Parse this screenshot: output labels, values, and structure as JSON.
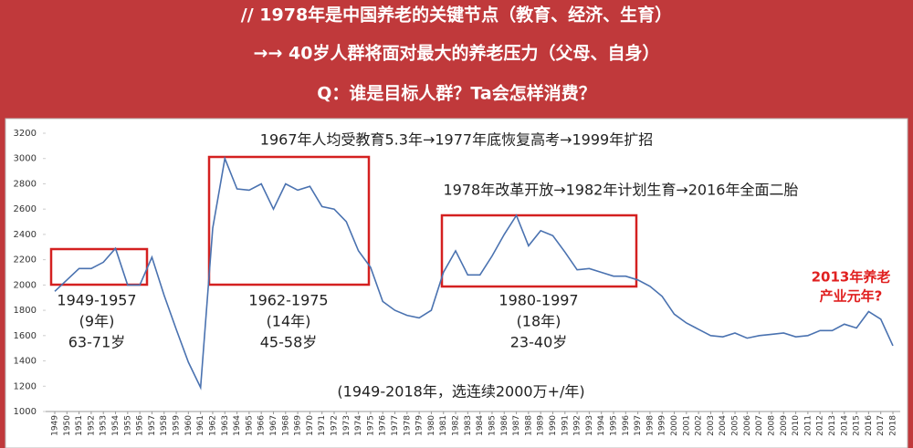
{
  "header": {
    "lines": [
      "//  1978年是中国养老的关键节点（教育、经济、生育）",
      "→→ 40岁人群将面对最大的养老压力（父母、自身）",
      "Q：谁是目标人群？Ta会怎样消费？"
    ]
  },
  "chart_data": {
    "type": "line",
    "x": [
      1949,
      1950,
      1951,
      1952,
      1953,
      1954,
      1955,
      1956,
      1957,
      1958,
      1959,
      1960,
      1961,
      1962,
      1963,
      1964,
      1965,
      1966,
      1967,
      1968,
      1969,
      1970,
      1971,
      1972,
      1973,
      1974,
      1975,
      1976,
      1977,
      1978,
      1979,
      1980,
      1981,
      1982,
      1983,
      1984,
      1985,
      1986,
      1987,
      1988,
      1989,
      1990,
      1991,
      1992,
      1993,
      1994,
      1995,
      1996,
      1997,
      1998,
      1999,
      2000,
      2001,
      2002,
      2003,
      2004,
      2005,
      2006,
      2007,
      2008,
      2009,
      2010,
      2011,
      2012,
      2013,
      2014,
      2015,
      2016,
      2017,
      2018
    ],
    "series": [
      {
        "color": "#4a72b0",
        "values": [
          1950,
          2040,
          2130,
          2130,
          2180,
          2290,
          2000,
          2000,
          2220,
          1920,
          1650,
          1390,
          1190,
          2450,
          3000,
          2760,
          2750,
          2800,
          2600,
          2800,
          2750,
          2780,
          2620,
          2600,
          2500,
          2270,
          2140,
          1870,
          1800,
          1760,
          1740,
          1800,
          2100,
          2270,
          2080,
          2080,
          2230,
          2400,
          2550,
          2310,
          2430,
          2390,
          2260,
          2120,
          2130,
          2100,
          2070,
          2070,
          2040,
          1990,
          1910,
          1770,
          1700,
          1650,
          1600,
          1590,
          1620,
          1580,
          1600,
          1610,
          1620,
          1590,
          1600,
          1640,
          1640,
          1690,
          1660,
          1790,
          1730,
          1520
        ]
      }
    ],
    "xlim": [
      1949,
      2018
    ],
    "ylim": [
      1000,
      3200
    ],
    "yticks": [
      1000,
      1200,
      1400,
      1600,
      1800,
      2000,
      2200,
      2400,
      2600,
      2800,
      3000,
      3200
    ],
    "grid": false,
    "annotations": [
      "1967年人均受教育5.3年→1977年底恢复高考→1999年扩招",
      "1978年改革开放→1982年计划生育→2016年全面二胎",
      "(1949-2018年，选连续2000万+/年)"
    ],
    "highlights": [
      {
        "lines": [
          "1949-1957",
          "(9年)",
          "63-71岁"
        ]
      },
      {
        "lines": [
          "1962-1975",
          "(14年)",
          "45-58岁"
        ]
      },
      {
        "lines": [
          "1980-1997",
          "(18年)",
          "23-40岁"
        ]
      }
    ],
    "highlight_color": "#d42020",
    "callout": {
      "lines": [
        "2013年养老",
        "产业元年?"
      ],
      "color": "#e02020"
    }
  }
}
